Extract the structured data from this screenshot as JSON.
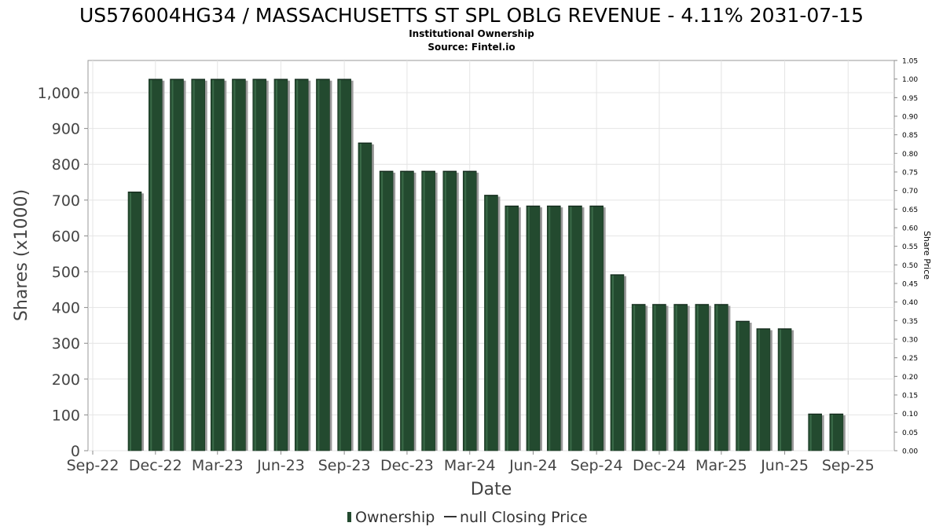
{
  "chart_data": {
    "type": "bar",
    "title": "US576004HG34 / MASSACHUSETTS ST SPL OBLG REVENUE - 4.11% 2031-07-15",
    "subtitle": "Institutional Ownership",
    "source": "Source: Fintel.io",
    "xlabel": "Date",
    "ylabel": "Shares (x1000)",
    "y2label": "Share Price",
    "ylim": [
      0,
      1090
    ],
    "y2lim": [
      0,
      1.05
    ],
    "grid": true,
    "legend_position": "bottom",
    "x_range": [
      "2022-09-01",
      "2025-10-22"
    ],
    "x_ticks": [
      {
        "label": "Sep-22",
        "date": "2022-09-01"
      },
      {
        "label": "Dec-22",
        "date": "2022-12-01"
      },
      {
        "label": "Mar-23",
        "date": "2023-03-01"
      },
      {
        "label": "Jun-23",
        "date": "2023-06-01"
      },
      {
        "label": "Sep-23",
        "date": "2023-09-01"
      },
      {
        "label": "Dec-23",
        "date": "2023-12-01"
      },
      {
        "label": "Mar-24",
        "date": "2024-03-01"
      },
      {
        "label": "Jun-24",
        "date": "2024-06-01"
      },
      {
        "label": "Sep-24",
        "date": "2024-09-01"
      },
      {
        "label": "Dec-24",
        "date": "2024-12-01"
      },
      {
        "label": "Mar-25",
        "date": "2025-03-01"
      },
      {
        "label": "Jun-25",
        "date": "2025-06-01"
      },
      {
        "label": "Sep-25",
        "date": "2025-09-01"
      }
    ],
    "y_ticks": [
      {
        "value": 0,
        "label": "0"
      },
      {
        "value": 100,
        "label": "100"
      },
      {
        "value": 200,
        "label": "200"
      },
      {
        "value": 300,
        "label": "300"
      },
      {
        "value": 400,
        "label": "400"
      },
      {
        "value": 500,
        "label": "500"
      },
      {
        "value": 600,
        "label": "600"
      },
      {
        "value": 700,
        "label": "700"
      },
      {
        "value": 800,
        "label": "800"
      },
      {
        "value": 900,
        "label": "900"
      },
      {
        "value": 1000,
        "label": "1,000"
      }
    ],
    "y2_ticks": [
      "0.00",
      "0.05",
      "0.10",
      "0.15",
      "0.20",
      "0.25",
      "0.30",
      "0.35",
      "0.40",
      "0.45",
      "0.50",
      "0.55",
      "0.60",
      "0.65",
      "0.70",
      "0.75",
      "0.80",
      "0.85",
      "0.90",
      "0.95",
      "1.00",
      "1.05"
    ],
    "series": [
      {
        "name": "Ownership",
        "color": "#234a2f",
        "points": [
          {
            "date": "2022-11-01",
            "value": 723
          },
          {
            "date": "2022-12-01",
            "value": 1038
          },
          {
            "date": "2023-01-01",
            "value": 1038
          },
          {
            "date": "2023-02-01",
            "value": 1038
          },
          {
            "date": "2023-03-01",
            "value": 1038
          },
          {
            "date": "2023-04-01",
            "value": 1038
          },
          {
            "date": "2023-05-01",
            "value": 1038
          },
          {
            "date": "2023-06-01",
            "value": 1038
          },
          {
            "date": "2023-07-01",
            "value": 1038
          },
          {
            "date": "2023-08-01",
            "value": 1038
          },
          {
            "date": "2023-09-01",
            "value": 1038
          },
          {
            "date": "2023-10-01",
            "value": 860
          },
          {
            "date": "2023-11-01",
            "value": 781
          },
          {
            "date": "2023-12-01",
            "value": 781
          },
          {
            "date": "2024-01-01",
            "value": 781
          },
          {
            "date": "2024-02-01",
            "value": 781
          },
          {
            "date": "2024-03-01",
            "value": 781
          },
          {
            "date": "2024-04-01",
            "value": 714
          },
          {
            "date": "2024-05-01",
            "value": 684
          },
          {
            "date": "2024-06-01",
            "value": 684
          },
          {
            "date": "2024-07-01",
            "value": 684
          },
          {
            "date": "2024-08-01",
            "value": 684
          },
          {
            "date": "2024-09-01",
            "value": 684
          },
          {
            "date": "2024-10-01",
            "value": 492
          },
          {
            "date": "2024-11-01",
            "value": 409
          },
          {
            "date": "2024-12-01",
            "value": 409
          },
          {
            "date": "2025-01-01",
            "value": 409
          },
          {
            "date": "2025-02-01",
            "value": 409
          },
          {
            "date": "2025-03-01",
            "value": 409
          },
          {
            "date": "2025-04-01",
            "value": 362
          },
          {
            "date": "2025-05-01",
            "value": 341
          },
          {
            "date": "2025-06-01",
            "value": 341
          },
          {
            "date": "2025-07-15",
            "value": 103
          },
          {
            "date": "2025-08-15",
            "value": 103
          }
        ]
      },
      {
        "name": "null Closing Price",
        "color": "#333333",
        "points": []
      }
    ],
    "legend": [
      {
        "label": "Ownership",
        "marker": "bar",
        "color": "#234a2f"
      },
      {
        "label": "null Closing Price",
        "marker": "line",
        "color": "#333333"
      }
    ]
  }
}
